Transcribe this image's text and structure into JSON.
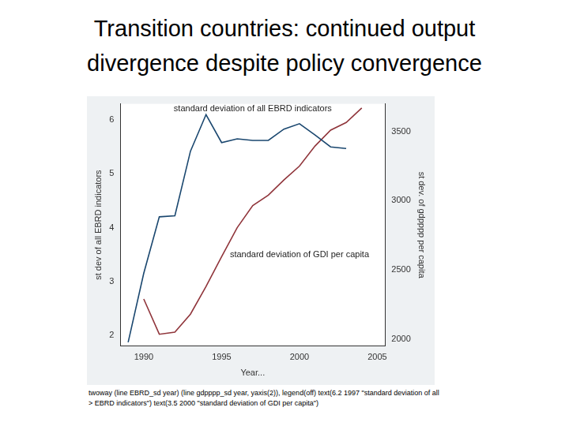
{
  "chart_data": {
    "type": "line",
    "title": [
      "Transition countries: continued output",
      "divergence despite policy convergence"
    ],
    "x_label": "Year...",
    "y_label": "st dev of all EBRD indicators",
    "y2_label": "st dev. of gdpppp per capita",
    "x": [
      1989,
      1990,
      1991,
      1992,
      1993,
      1994,
      1995,
      1996,
      1997,
      1998,
      1999,
      2000,
      2001,
      2002,
      2003,
      2004
    ],
    "series": [
      {
        "name": "EBRD_sd",
        "color": "#1a476f",
        "marker": "none",
        "line_style": "solid",
        "values": [
          1.87,
          3.15,
          4.2,
          4.22,
          5.42,
          6.1,
          5.58,
          5.65,
          5.62,
          5.62,
          5.83,
          5.93,
          5.72,
          5.5,
          5.47,
          null
        ]
      },
      {
        "name": "gdpppp_sd",
        "color": "#90353b",
        "marker": "none",
        "line_style": "solid",
        "axis": "y2",
        "values": [
          null,
          2290,
          2035,
          2050,
          2180,
          2380,
          2595,
          2805,
          2965,
          3040,
          3150,
          3250,
          3395,
          3510,
          3565,
          3670
        ]
      }
    ],
    "xlim": [
      1988.5,
      2005.5
    ],
    "xticks": [
      1990,
      1995,
      2000,
      2005
    ],
    "ylim": [
      1.8,
      6.3
    ],
    "yticks": [
      2,
      3,
      4,
      5,
      6
    ],
    "y2lim": [
      1950,
      3700
    ],
    "y2ticks": [
      2000,
      2500,
      3000,
      3500
    ],
    "grid": false,
    "annotations": [
      {
        "text": "standard deviation of all EBRD indicators",
        "x": 1997,
        "y": 6.2
      },
      {
        "text": "standard deviation of GDI per capita",
        "x": 2000,
        "y": 3.5
      }
    ],
    "footer": [
      "twoway (line EBRD_sd year) (line gdpppp_sd year, yaxis(2)), legend(off) text(6.2 1997 \"standard deviation of all",
      "> EBRD indicators\") text(3.5 2000 \"standard deviation of GDI per capita\")"
    ]
  }
}
